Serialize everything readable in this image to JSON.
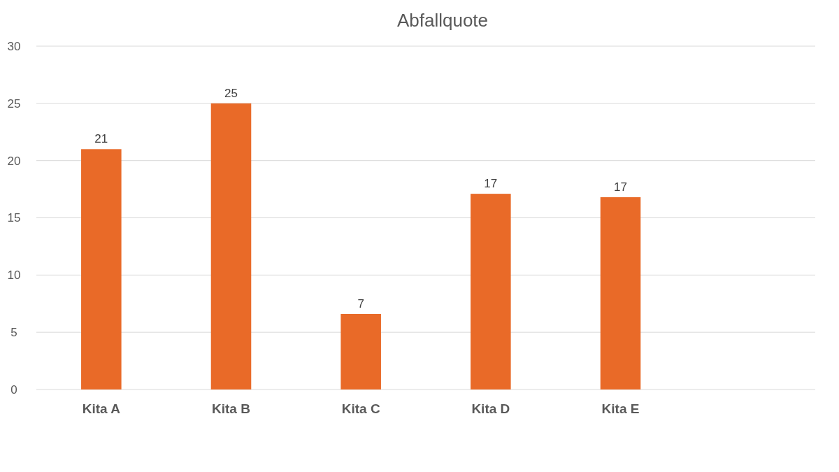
{
  "chart_data": {
    "type": "bar",
    "title": "Abfallquote",
    "categories": [
      "Kita A",
      "Kita B",
      "Kita C",
      "Kita D",
      "Kita E",
      null
    ],
    "values": [
      21,
      25,
      6.6,
      17.1,
      16.8,
      null
    ],
    "value_labels": [
      "21",
      "25",
      "7",
      "17",
      "17",
      null
    ],
    "color": "#e96a28",
    "ylim": [
      0,
      30
    ],
    "yticks": [
      0,
      5,
      10,
      15,
      20,
      25,
      30
    ],
    "grid": "y"
  }
}
